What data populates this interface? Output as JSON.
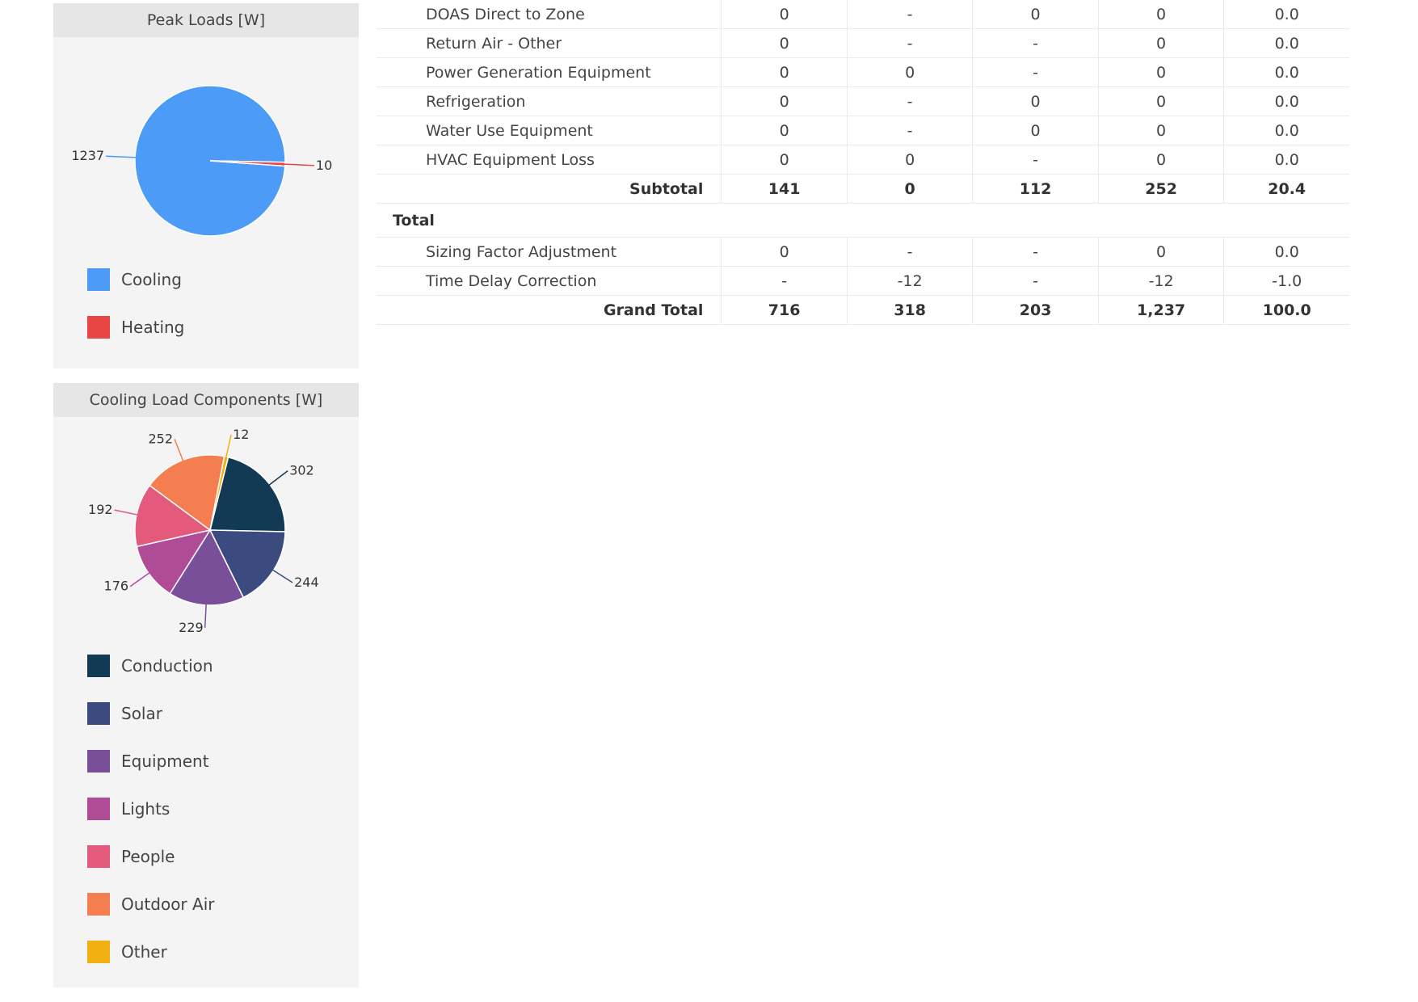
{
  "table": {
    "rows": [
      {
        "type": "row",
        "name": "DOAS Direct to Zone",
        "values": [
          "0",
          "-",
          "0",
          "0",
          "0.0"
        ]
      },
      {
        "type": "row",
        "name": "Return Air - Other",
        "values": [
          "0",
          "-",
          "-",
          "0",
          "0.0"
        ]
      },
      {
        "type": "row",
        "name": "Power Generation Equipment",
        "values": [
          "0",
          "0",
          "-",
          "0",
          "0.0"
        ]
      },
      {
        "type": "row",
        "name": "Refrigeration",
        "values": [
          "0",
          "-",
          "0",
          "0",
          "0.0"
        ]
      },
      {
        "type": "row",
        "name": "Water Use Equipment",
        "values": [
          "0",
          "-",
          "0",
          "0",
          "0.0"
        ]
      },
      {
        "type": "row",
        "name": "HVAC Equipment Loss",
        "values": [
          "0",
          "0",
          "-",
          "0",
          "0.0"
        ]
      },
      {
        "type": "subtotal",
        "name": "Subtotal",
        "values": [
          "141",
          "0",
          "112",
          "252",
          "20.4"
        ]
      },
      {
        "type": "section",
        "name": "Total"
      },
      {
        "type": "row",
        "name": "Sizing Factor Adjustment",
        "values": [
          "0",
          "-",
          "-",
          "0",
          "0.0"
        ]
      },
      {
        "type": "row",
        "name": "Time Delay Correction",
        "values": [
          "-",
          "-12",
          "-",
          "-12",
          "-1.0"
        ]
      },
      {
        "type": "subtotal",
        "name": "Grand Total",
        "values": [
          "716",
          "318",
          "203",
          "1,237",
          "100.0"
        ]
      }
    ]
  },
  "chart_data": [
    {
      "type": "pie",
      "title": "Peak Loads [W]",
      "labels": [
        "Cooling",
        "Heating"
      ],
      "values": [
        1237,
        10
      ],
      "colors": [
        "#4c9bf6",
        "#e94545"
      ],
      "legend": "bottom"
    },
    {
      "type": "pie",
      "title": "Cooling Load Components [W]",
      "labels": [
        "Conduction",
        "Solar",
        "Equipment",
        "Lights",
        "People",
        "Outdoor Air",
        "Other"
      ],
      "values": [
        302,
        244,
        229,
        176,
        192,
        252,
        12
      ],
      "colors": [
        "#133a55",
        "#3b4a7f",
        "#7a4f9a",
        "#b04c95",
        "#e35a7c",
        "#f47e4f",
        "#f2b011"
      ],
      "legend": "bottom"
    }
  ]
}
